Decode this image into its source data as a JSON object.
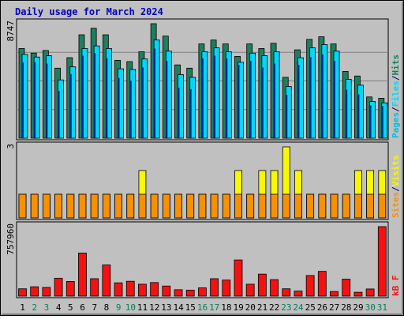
{
  "chart_data": {
    "type": "bar",
    "title": "Daily usage for March 2024",
    "categories": [
      "1",
      "2",
      "3",
      "4",
      "5",
      "6",
      "7",
      "8",
      "9",
      "10",
      "11",
      "12",
      "13",
      "14",
      "15",
      "16",
      "17",
      "18",
      "19",
      "20",
      "21",
      "22",
      "23",
      "24",
      "25",
      "26",
      "27",
      "28",
      "29",
      "30",
      "31"
    ],
    "weekend_days": [
      "2",
      "3",
      "9",
      "10",
      "16",
      "17",
      "23",
      "24",
      "30",
      "31"
    ],
    "panels": [
      {
        "name": "hits_files_pages",
        "axis_max_label": "8747",
        "ylim": [
          0,
          8747
        ],
        "legend": [
          "Pages",
          "Files",
          "Hits"
        ],
        "series": [
          {
            "name": "Hits",
            "color": "#1a8060",
            "values": [
              6850,
              6500,
              6700,
              5350,
              6150,
              7900,
              8400,
              7900,
              5950,
              5850,
              6600,
              8747,
              7800,
              5600,
              5350,
              7200,
              7500,
              7200,
              6250,
              7200,
              6850,
              7250,
              4650,
              6750,
              7550,
              7750,
              7200,
              5100,
              4750,
              3150,
              3050
            ]
          },
          {
            "name": "Files",
            "color": "#00d8f8",
            "values": [
              6400,
              6200,
              6300,
              4450,
              5450,
              6850,
              7050,
              6850,
              5300,
              5250,
              6050,
              7500,
              6650,
              4850,
              4650,
              6600,
              6900,
              6600,
              5800,
              6500,
              6300,
              6600,
              3950,
              6150,
              6900,
              7150,
              6650,
              4500,
              4050,
              2800,
              2700
            ]
          },
          {
            "name": "Pages",
            "color": "#00a8e8",
            "values": [
              5800,
              5800,
              5700,
              3600,
              4900,
              6300,
              6500,
              6100,
              4600,
              4400,
              5400,
              6850,
              5900,
              3850,
              3750,
              6100,
              6300,
              6100,
              5600,
              5900,
              5400,
              5700,
              3300,
              5600,
              6200,
              6400,
              5900,
              3700,
              3350,
              2500,
              2450
            ]
          }
        ]
      },
      {
        "name": "sites_visits",
        "axis_max_label": "3",
        "ylim": [
          0,
          3
        ],
        "legend": [
          "Sites",
          "Visits"
        ],
        "series": [
          {
            "name": "Visits",
            "color": "#f8f800",
            "values": [
              1,
              1,
              1,
              1,
              1,
              1,
              1,
              1,
              1,
              1,
              2,
              1,
              1,
              1,
              1,
              1,
              1,
              1,
              2,
              1,
              2,
              2,
              3,
              2,
              1,
              1,
              1,
              1,
              2,
              2,
              2
            ]
          },
          {
            "name": "Sites",
            "color": "#f89000",
            "values": [
              1,
              1,
              1,
              1,
              1,
              1,
              1,
              1,
              1,
              1,
              1,
              1,
              1,
              1,
              1,
              1,
              1,
              1,
              1,
              1,
              1,
              1,
              1,
              1,
              1,
              1,
              1,
              1,
              1,
              1,
              1
            ]
          }
        ]
      },
      {
        "name": "kbytes",
        "axis_max_label": "757960",
        "ylim": [
          0,
          757960
        ],
        "legend": [
          "kB F"
        ],
        "series": [
          {
            "name": "kB F",
            "color": "#f81010",
            "values": [
              80000,
              102000,
              95000,
              195000,
              160000,
              470000,
              190000,
              340000,
              145000,
              162000,
              130000,
              148000,
              110000,
              70000,
              65000,
              90000,
              190000,
              175000,
              395000,
              130000,
              240000,
              180000,
              80000,
              55000,
              225000,
              270000,
              50000,
              185000,
              42000,
              78000,
              757960
            ]
          }
        ]
      }
    ]
  },
  "colors": {
    "weekday_label": "#000000",
    "weekend_label": "#00805c",
    "title": "#0000c0",
    "legend_sep": "#000060",
    "plot_bg": "#c0c0c0",
    "border": "#000000"
  }
}
